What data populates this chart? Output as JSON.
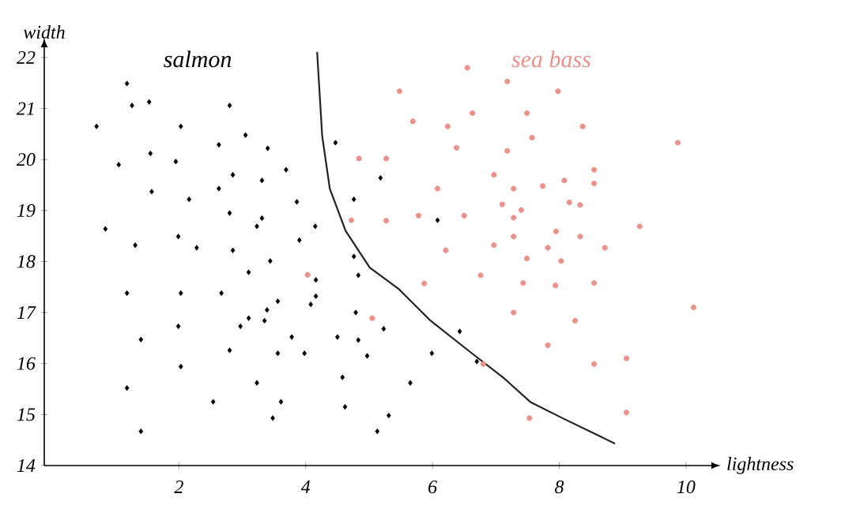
{
  "chart_data": {
    "type": "scatter",
    "xlabel": "lightness",
    "ylabel": "width",
    "xlim": [
      -0.125,
      10.4
    ],
    "ylim": [
      14,
      22.2
    ],
    "xticks": [
      2,
      4,
      6,
      8,
      10
    ],
    "yticks": [
      14,
      15,
      16,
      17,
      18,
      19,
      20,
      21,
      22
    ],
    "series": [
      {
        "name": "salmon",
        "color": "#000000",
        "marker": "diamond",
        "x": [
          1.18,
          1.26,
          1.53,
          2.8,
          0.7,
          2.03,
          2.63,
          3.05,
          3.4,
          1.55,
          1.95,
          1.05,
          2.85,
          3.31,
          3.69,
          1.57,
          2.16,
          2.63,
          3.86,
          2.8,
          3.31,
          3.23,
          4.15,
          0.84,
          1.31,
          1.99,
          2.28,
          2.85,
          3.9,
          3.44,
          3.1,
          4.16,
          1.18,
          2.03,
          2.67,
          4.16,
          4.08,
          3.56,
          3.39,
          3.1,
          2.97,
          3.35,
          1.99,
          1.4,
          3.78,
          2.8,
          3.56,
          3.98,
          2.03,
          1.18,
          3.23,
          2.54,
          3.61,
          3.48,
          1.4,
          4.47,
          5.18,
          4.76,
          4.76,
          6.08,
          4.83,
          4.79,
          4.83,
          4.5,
          5.23,
          4.97,
          4.58,
          4.62,
          5.13,
          5.31,
          5.65,
          5.99,
          6.43,
          6.7
        ],
        "values": [
          21.49,
          21.06,
          21.13,
          21.06,
          20.65,
          20.65,
          20.29,
          20.48,
          20.22,
          20.12,
          19.96,
          19.9,
          19.7,
          19.59,
          19.8,
          19.37,
          19.22,
          19.43,
          19.17,
          18.95,
          18.85,
          18.69,
          18.69,
          18.64,
          18.32,
          18.49,
          18.27,
          18.22,
          18.42,
          18.01,
          17.79,
          17.64,
          17.38,
          17.38,
          17.38,
          17.32,
          17.16,
          17.22,
          17.05,
          16.89,
          16.73,
          16.84,
          16.73,
          16.47,
          16.52,
          16.26,
          16.2,
          16.2,
          15.94,
          15.52,
          15.62,
          15.25,
          15.25,
          14.93,
          14.67,
          20.33,
          19.64,
          19.22,
          18.1,
          18.81,
          17.73,
          17.0,
          16.46,
          16.52,
          16.68,
          16.15,
          15.73,
          15.15,
          14.67,
          14.98,
          15.62,
          16.2,
          16.63,
          16.04
        ]
      },
      {
        "name": "sea bass",
        "color": "#e8928b",
        "marker": "circle",
        "x": [
          4.03,
          6.55,
          7.18,
          7.98,
          5.48,
          6.63,
          7.49,
          5.69,
          6.24,
          7.57,
          6.38,
          7.18,
          4.84,
          5.27,
          6.97,
          6.08,
          7.28,
          7.74,
          7.1,
          7.4,
          4.72,
          5.27,
          5.78,
          6.5,
          7.28,
          7.95,
          6.21,
          6.97,
          7.28,
          7.82,
          7.49,
          8.03,
          5.05,
          5.87,
          6.76,
          7.43,
          7.94,
          7.28,
          7.82,
          6.8,
          7.53,
          8.37,
          9.87,
          8.55,
          8.08,
          8.55,
          8.16,
          8.33,
          8.33,
          9.27,
          8.72,
          8.55,
          10.12,
          8.25,
          8.55,
          9.06,
          9.06
        ],
        "values": [
          17.74,
          21.8,
          21.53,
          21.34,
          21.34,
          20.91,
          20.91,
          20.75,
          20.65,
          20.43,
          20.23,
          20.17,
          20.02,
          20.02,
          19.7,
          19.43,
          19.43,
          19.48,
          19.12,
          19.01,
          18.81,
          18.8,
          18.9,
          18.9,
          18.86,
          18.59,
          18.22,
          18.32,
          18.49,
          18.27,
          18.06,
          18.01,
          16.89,
          17.57,
          17.73,
          17.58,
          17.53,
          17.0,
          16.36,
          15.99,
          14.93,
          20.65,
          20.33,
          19.8,
          19.59,
          19.53,
          19.16,
          19.11,
          18.49,
          18.69,
          18.27,
          17.58,
          17.1,
          16.84,
          15.99,
          16.1,
          15.04
        ]
      },
      {
        "type": "line",
        "color": "#222222",
        "marker": "none",
        "x": [
          4.18,
          4.26,
          4.38,
          4.63,
          5.01,
          5.47,
          5.97,
          6.55,
          7.13,
          7.55,
          8.05,
          8.88
        ],
        "values": [
          22.11,
          20.46,
          19.43,
          18.6,
          17.88,
          17.46,
          16.84,
          16.27,
          15.71,
          15.24,
          14.93,
          14.43
        ]
      }
    ]
  }
}
